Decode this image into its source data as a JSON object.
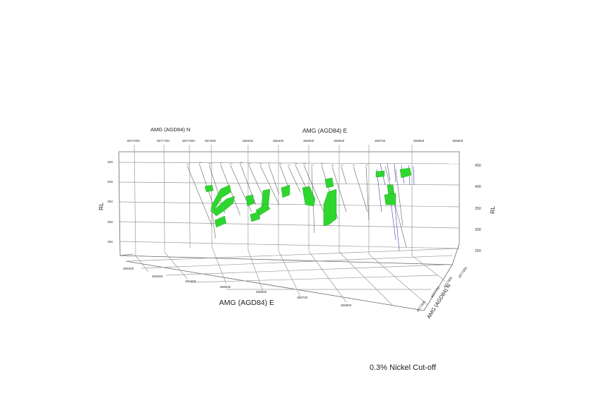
{
  "caption": "0.3% Nickel Cut-off",
  "axes": {
    "top_north_label": "AMG (AGD84) N",
    "top_east_label": "AMG (AGD84) E",
    "bottom_east_label": "AMG (AGD84) E",
    "bottom_north_label": "AMG (AGD84) N",
    "left_rl_label": "RL",
    "right_rl_label": "RL"
  },
  "top_north_ticks": [
    "6877800",
    "6877750",
    "6877800",
    "687900"
  ],
  "top_east_ticks": [
    "368300",
    "368400",
    "368500",
    "368600",
    "368700",
    "368800",
    "368900"
  ],
  "bottom_east_ticks": [
    "368300",
    "368300",
    "368400",
    "368500",
    "368600",
    "368700",
    "368800"
  ],
  "bottom_north_ticks": [
    "6877800",
    "6877750",
    "6877800",
    "6877850"
  ],
  "left_rl_ticks": [
    "450",
    "400",
    "350",
    "300",
    "250"
  ],
  "right_rl_ticks": [
    "450",
    "400",
    "350",
    "300",
    "250"
  ],
  "colors": {
    "orebody": "#2fd62f",
    "drillhole": "#555555",
    "drillhole_alt": "#3d3fae"
  }
}
